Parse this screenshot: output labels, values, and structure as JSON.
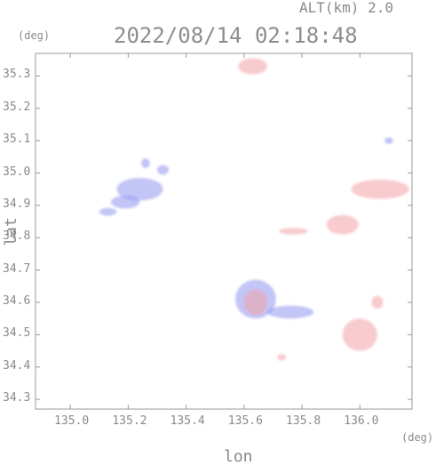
{
  "header": {
    "altitude": "ALT(km) 2.0",
    "timestamp": "2022/08/14 02:18:48"
  },
  "units": {
    "y": "(deg)",
    "x": "(deg)"
  },
  "chart_data": {
    "type": "heatmap",
    "xlabel": "lon",
    "ylabel": "lat",
    "xlim": [
      134.88,
      136.18
    ],
    "ylim": [
      34.27,
      35.37
    ],
    "x_ticks": [
      135.0,
      135.2,
      135.4,
      135.6,
      135.8,
      136.0
    ],
    "y_ticks": [
      34.3,
      34.4,
      34.5,
      34.6,
      34.7,
      34.8,
      34.9,
      35.0,
      35.1,
      35.2,
      35.3
    ],
    "x_tick_labels": [
      "135.0",
      "135.2",
      "135.4",
      "135.6",
      "135.8",
      "136.0"
    ],
    "y_tick_labels": [
      "34.3",
      "34.4",
      "34.5",
      "34.6",
      "34.7",
      "34.8",
      "34.9",
      "35.0",
      "35.1",
      "35.2",
      "35.3"
    ],
    "colors": {
      "negative": "#8f95ee",
      "positive": "#f2a0a6",
      "frame": "#999999"
    },
    "echoes": [
      {
        "name": "echo-north-top",
        "sign": "positive",
        "lon": 135.63,
        "lat": 35.33,
        "rlon": 0.05,
        "rlat": 0.025
      },
      {
        "name": "echo-west-main",
        "sign": "negative",
        "lon": 135.24,
        "lat": 34.95,
        "rlon": 0.08,
        "rlat": 0.035
      },
      {
        "name": "echo-west-sub",
        "sign": "negative",
        "lon": 135.19,
        "lat": 34.91,
        "rlon": 0.05,
        "rlat": 0.02
      },
      {
        "name": "echo-west-cell",
        "sign": "negative",
        "lon": 135.13,
        "lat": 34.88,
        "rlon": 0.03,
        "rlat": 0.012
      },
      {
        "name": "echo-west-nw",
        "sign": "negative",
        "lon": 135.26,
        "lat": 35.03,
        "rlon": 0.015,
        "rlat": 0.015
      },
      {
        "name": "echo-west-ne",
        "sign": "negative",
        "lon": 135.32,
        "lat": 35.01,
        "rlon": 0.02,
        "rlat": 0.015
      },
      {
        "name": "echo-ne-small",
        "sign": "negative",
        "lon": 136.1,
        "lat": 35.1,
        "rlon": 0.015,
        "rlat": 0.01
      },
      {
        "name": "echo-east-large",
        "sign": "positive",
        "lon": 136.07,
        "lat": 34.95,
        "rlon": 0.1,
        "rlat": 0.03
      },
      {
        "name": "echo-east-mid",
        "sign": "positive",
        "lon": 135.94,
        "lat": 34.84,
        "rlon": 0.055,
        "rlat": 0.03
      },
      {
        "name": "echo-east-band",
        "sign": "positive",
        "lon": 135.77,
        "lat": 34.82,
        "rlon": 0.05,
        "rlat": 0.01
      },
      {
        "name": "echo-center-cluster",
        "sign": "negative",
        "lon": 135.64,
        "lat": 34.61,
        "rlon": 0.07,
        "rlat": 0.06
      },
      {
        "name": "echo-center-cluster-mix",
        "sign": "positive",
        "lon": 135.64,
        "lat": 34.6,
        "rlon": 0.04,
        "rlat": 0.04
      },
      {
        "name": "echo-center-tail",
        "sign": "negative",
        "lon": 135.76,
        "lat": 34.57,
        "rlon": 0.08,
        "rlat": 0.02
      },
      {
        "name": "echo-south-east",
        "sign": "positive",
        "lon": 136.0,
        "lat": 34.5,
        "rlon": 0.06,
        "rlat": 0.05
      },
      {
        "name": "echo-south-east-tip",
        "sign": "positive",
        "lon": 136.06,
        "lat": 34.6,
        "rlon": 0.02,
        "rlat": 0.02
      },
      {
        "name": "echo-south-small",
        "sign": "positive",
        "lon": 135.73,
        "lat": 34.43,
        "rlon": 0.015,
        "rlat": 0.01
      }
    ]
  }
}
